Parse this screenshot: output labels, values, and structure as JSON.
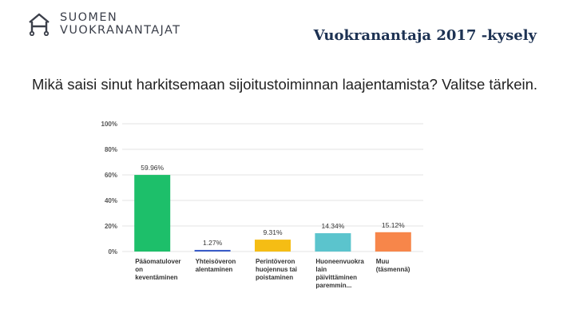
{
  "header": {
    "logo_line1": "SUOMEN",
    "logo_line2": "VUOKRANANTAJAT",
    "survey_title": "Vuokranantaja 2017 -kysely"
  },
  "question": "Mikä saisi sinut harkitsemaan sijoitustoiminnan laajentamista? Valitse tärkein.",
  "chart_data": {
    "type": "bar",
    "categories": [
      [
        "Pääomatulover",
        "on",
        "keventäminen"
      ],
      [
        "Yhteisöveron",
        "alentaminen"
      ],
      [
        "Perintöveron",
        "huojennus tai",
        "poistaminen"
      ],
      [
        "Huoneenvuokra",
        "lain",
        "päivittäminen",
        "paremmin..."
      ],
      [
        "Muu",
        "(täsmennä)"
      ]
    ],
    "values": [
      59.96,
      1.27,
      9.31,
      14.34,
      15.12
    ],
    "value_labels": [
      "59.96%",
      "1.27%",
      "9.31%",
      "14.34%",
      "15.12%"
    ],
    "colors": [
      "#1dbf6a",
      "#3a5cc8",
      "#f5bd14",
      "#5bc4cd",
      "#f7864a"
    ],
    "yticks": [
      "0%",
      "20%",
      "40%",
      "60%",
      "80%",
      "100%"
    ],
    "ylim": [
      0,
      100
    ],
    "grid": true
  }
}
